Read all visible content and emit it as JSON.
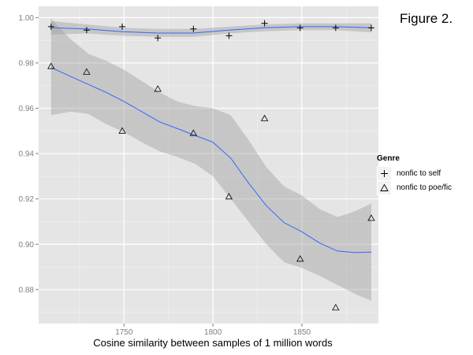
{
  "figure_label": "Figure 2.",
  "chart_data": {
    "type": "scatter",
    "title": "Figure 2.",
    "xlabel": "Cosine similarity between samples of 1 million words",
    "ylabel": "",
    "xlim": [
      1702,
      1893
    ],
    "ylim": [
      0.865,
      1.005
    ],
    "x_ticks": [
      1750,
      1800,
      1850
    ],
    "y_ticks": [
      0.88,
      0.9,
      0.92,
      0.94,
      0.96,
      0.98,
      1.0
    ],
    "x_tick_labels": [
      "1750",
      "1800",
      "1850"
    ],
    "y_tick_labels": [
      "0.88",
      "0.90",
      "0.92",
      "0.94",
      "0.96",
      "0.98",
      "1.00"
    ],
    "grid": true,
    "legend": {
      "title": "Genre",
      "position": "right",
      "entries": [
        "nonfic to self",
        "nonfic to poe/fic"
      ]
    },
    "series": [
      {
        "name": "nonfic to self",
        "marker": "plus",
        "x": [
          1709,
          1729,
          1749,
          1769,
          1789,
          1809,
          1829,
          1849,
          1869,
          1889
        ],
        "y": [
          0.996,
          0.9945,
          0.996,
          0.991,
          0.995,
          0.992,
          0.9975,
          0.9955,
          0.9955,
          0.9955
        ],
        "smooth": {
          "x": [
            1709,
            1729,
            1749,
            1769,
            1789,
            1809,
            1829,
            1849,
            1869,
            1889
          ],
          "y": [
            0.9955,
            0.995,
            0.9938,
            0.9932,
            0.9932,
            0.9945,
            0.9955,
            0.996,
            0.996,
            0.9955
          ],
          "lower": [
            0.9925,
            0.993,
            0.992,
            0.9915,
            0.9915,
            0.993,
            0.994,
            0.9945,
            0.9945,
            0.9935
          ],
          "upper": [
            0.9985,
            0.997,
            0.9956,
            0.995,
            0.995,
            0.996,
            0.997,
            0.9975,
            0.9975,
            0.9975
          ]
        }
      },
      {
        "name": "nonfic to poe/fic",
        "marker": "triangle",
        "x": [
          1709,
          1729,
          1749,
          1769,
          1789,
          1809,
          1829,
          1849,
          1869,
          1889
        ],
        "y": [
          0.9785,
          0.976,
          0.95,
          0.9685,
          0.949,
          0.921,
          0.9555,
          0.8935,
          0.872,
          0.9115
        ],
        "smooth": {
          "x": [
            1709,
            1720,
            1730,
            1740,
            1750,
            1760,
            1770,
            1780,
            1790,
            1800,
            1810,
            1820,
            1830,
            1840,
            1850,
            1860,
            1870,
            1880,
            1889
          ],
          "y": [
            0.978,
            0.974,
            0.9705,
            0.967,
            0.963,
            0.9585,
            0.954,
            0.951,
            0.948,
            0.945,
            0.938,
            0.927,
            0.917,
            0.9095,
            0.9055,
            0.9005,
            0.897,
            0.8963,
            0.8965
          ],
          "lower": [
            0.957,
            0.9585,
            0.9575,
            0.953,
            0.9495,
            0.945,
            0.941,
            0.9385,
            0.9355,
            0.93,
            0.92,
            0.91,
            0.9,
            0.892,
            0.8895,
            0.886,
            0.882,
            0.878,
            0.875
          ],
          "upper": [
            0.9995,
            0.9905,
            0.984,
            0.981,
            0.977,
            0.972,
            0.967,
            0.963,
            0.961,
            0.96,
            0.957,
            0.946,
            0.934,
            0.9255,
            0.9215,
            0.9155,
            0.912,
            0.9146,
            0.918
          ]
        }
      }
    ]
  }
}
